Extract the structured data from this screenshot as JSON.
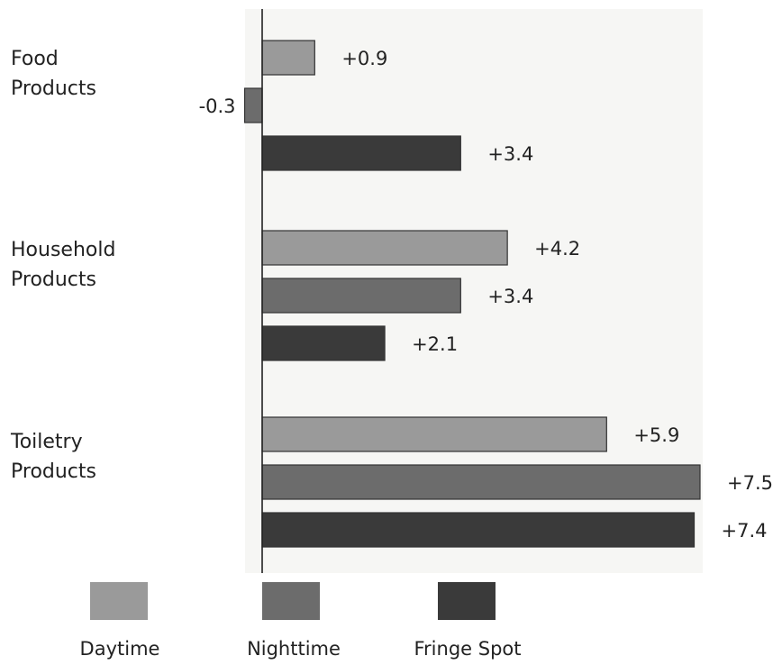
{
  "chart_data": {
    "type": "bar",
    "orientation": "horizontal",
    "categories": [
      [
        "Food",
        "Products"
      ],
      [
        "Household",
        "Products"
      ],
      [
        "Toiletry",
        "Products"
      ]
    ],
    "series": [
      {
        "name": "Daytime",
        "color": "#9a9a9a",
        "values": [
          0.9,
          4.2,
          5.9
        ],
        "labels": [
          "+0.9",
          "+4.2",
          "+5.9"
        ]
      },
      {
        "name": "Nighttime",
        "color": "#6c6c6c",
        "values": [
          -0.3,
          3.4,
          7.5
        ],
        "labels": [
          "-0.3",
          "+3.4",
          "+7.5"
        ]
      },
      {
        "name": "Fringe Spot",
        "color": "#3a3a3a",
        "values": [
          3.4,
          2.1,
          7.4
        ],
        "labels": [
          "+3.4",
          "+2.1",
          "+7.4"
        ]
      }
    ],
    "xlim": [
      -0.3,
      7.5
    ],
    "grid": false,
    "legend": "bottom"
  }
}
